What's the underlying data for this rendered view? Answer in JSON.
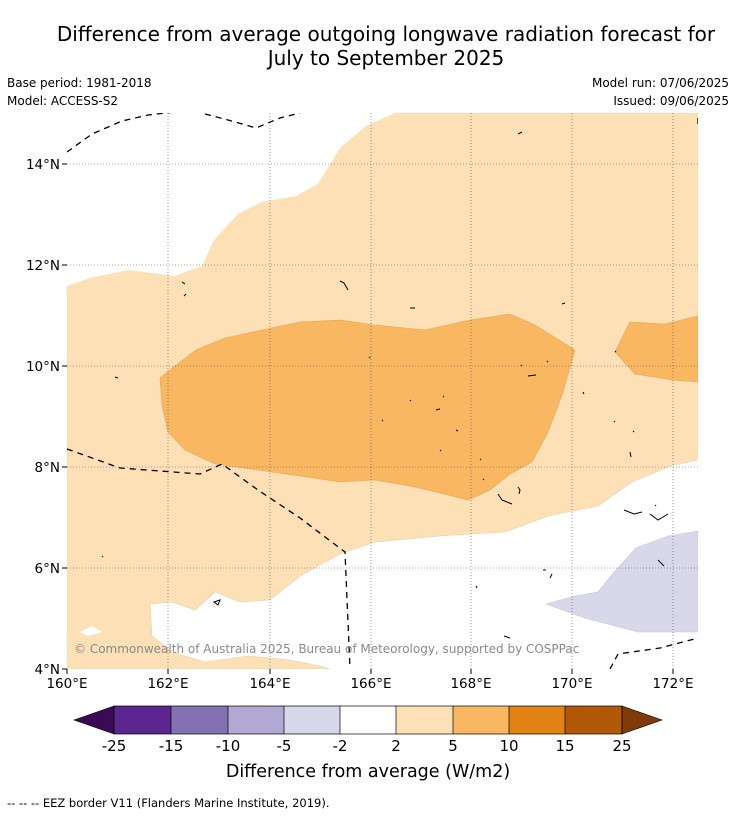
{
  "title_line1": "Difference from average outgoing longwave radiation forecast for",
  "title_line2": "July to September 2025",
  "base_period": "Base period: 1981-2018",
  "model": "Model: ACCESS-S2",
  "model_run": "Model run: 07/06/2025",
  "issued": "Issued: 09/06/2025",
  "credit": "© Commonwealth of Australia 2025, Bureau of Meteorology, supported by COSPPac",
  "colorbar_label": "Difference from average (W/m2)",
  "footnote": "--  --  -- EEZ border V11 (Flanders Marine Institute, 2019).",
  "colors": {
    "plus_2_5": "#fde0b6",
    "plus_5_10": "#f9b761",
    "minus_2_5": "#d8d8ea",
    "colorbar": [
      "#3b0a55",
      "#5b2690",
      "#8371b1",
      "#b1a8d3",
      "#d8d8ea",
      "#ffffff",
      "#fde0b6",
      "#f9b761",
      "#e08214",
      "#b35806",
      "#7f3b08"
    ]
  },
  "chart_data": {
    "type": "heatmap",
    "x_ticks": [
      "160°E",
      "162°E",
      "164°E",
      "166°E",
      "168°E",
      "170°E",
      "172°E"
    ],
    "y_ticks": [
      "4°N",
      "6°N",
      "8°N",
      "10°N",
      "12°N",
      "14°N"
    ],
    "x_values": [
      160,
      162,
      164,
      166,
      168,
      170,
      172
    ],
    "y_values": [
      4,
      6,
      8,
      10,
      12,
      14
    ],
    "xlim": [
      160,
      172.5
    ],
    "ylim": [
      4,
      15
    ],
    "levels": [
      -25,
      -15,
      -10,
      -5,
      -2,
      2,
      5,
      10,
      15,
      25
    ],
    "level_labels": [
      "-25",
      "-15",
      "-10",
      "-5",
      "-2",
      "2",
      "5",
      "10",
      "15",
      "25"
    ],
    "grid": true
  }
}
